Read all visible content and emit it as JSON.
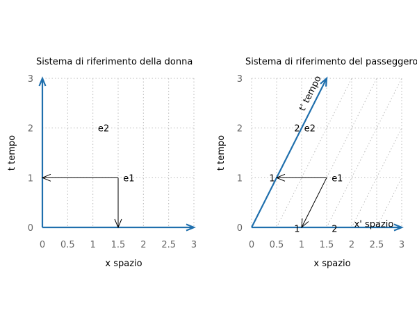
{
  "chart_data": [
    {
      "type": "line",
      "title": "Sistema di riferimento della donna",
      "xlabel": "x spazio",
      "ylabel": "t tempo",
      "xlim": [
        0,
        3
      ],
      "ylim": [
        0,
        3
      ],
      "xticks": [
        "0",
        "0.5",
        "1",
        "1.5",
        "2",
        "2.5",
        "3"
      ],
      "yticks": [
        "0",
        "1",
        "2",
        "3"
      ],
      "grid": true,
      "axes": [
        {
          "from": [
            0,
            0
          ],
          "to": [
            0,
            3
          ]
        },
        {
          "from": [
            0,
            0
          ],
          "to": [
            3,
            0
          ]
        }
      ],
      "vectors": [
        {
          "from": [
            1.5,
            1
          ],
          "to": [
            0,
            1
          ]
        },
        {
          "from": [
            1.5,
            1
          ],
          "to": [
            1.5,
            0
          ]
        }
      ],
      "annotations": [
        {
          "text": "e1",
          "x": 1.6,
          "y": 1
        },
        {
          "text": "e2",
          "x": 1.1,
          "y": 2
        }
      ]
    },
    {
      "type": "line",
      "title": "Sistema di riferimento del passeggero",
      "xlabel": "x spazio",
      "ylabel": "t tempo",
      "xlim": [
        0,
        3
      ],
      "ylim": [
        0,
        3
      ],
      "xticks": [
        "0",
        "0.5",
        "1",
        "1.5",
        "2",
        "2.5",
        "3"
      ],
      "yticks": [
        "0",
        "1",
        "2",
        "3"
      ],
      "grid": true,
      "skewed_grid_slope": 2,
      "axes": [
        {
          "from": [
            0,
            0
          ],
          "to": [
            1.5,
            3
          ]
        },
        {
          "from": [
            0,
            0
          ],
          "to": [
            3,
            0
          ]
        }
      ],
      "vectors": [
        {
          "from": [
            1.5,
            1
          ],
          "to": [
            0.5,
            1
          ]
        },
        {
          "from": [
            1.5,
            1
          ],
          "to": [
            1,
            0
          ]
        }
      ],
      "annotations": [
        {
          "text": "e1",
          "x": 1.6,
          "y": 1
        },
        {
          "text": "e2",
          "x": 1.05,
          "y": 2
        },
        {
          "text": "1",
          "x": 0.35,
          "y": 1
        },
        {
          "text": "2",
          "x": 0.85,
          "y": 2
        },
        {
          "text": "1",
          "x": 0.85,
          "y": -0.02
        },
        {
          "text": "2",
          "x": 1.6,
          "y": -0.02
        },
        {
          "text": "x' spazio",
          "x": 2.05,
          "y": 0.08
        },
        {
          "text": "t' tempo",
          "x": 1.05,
          "y": 2.4,
          "rotate": -63.4
        }
      ]
    }
  ]
}
